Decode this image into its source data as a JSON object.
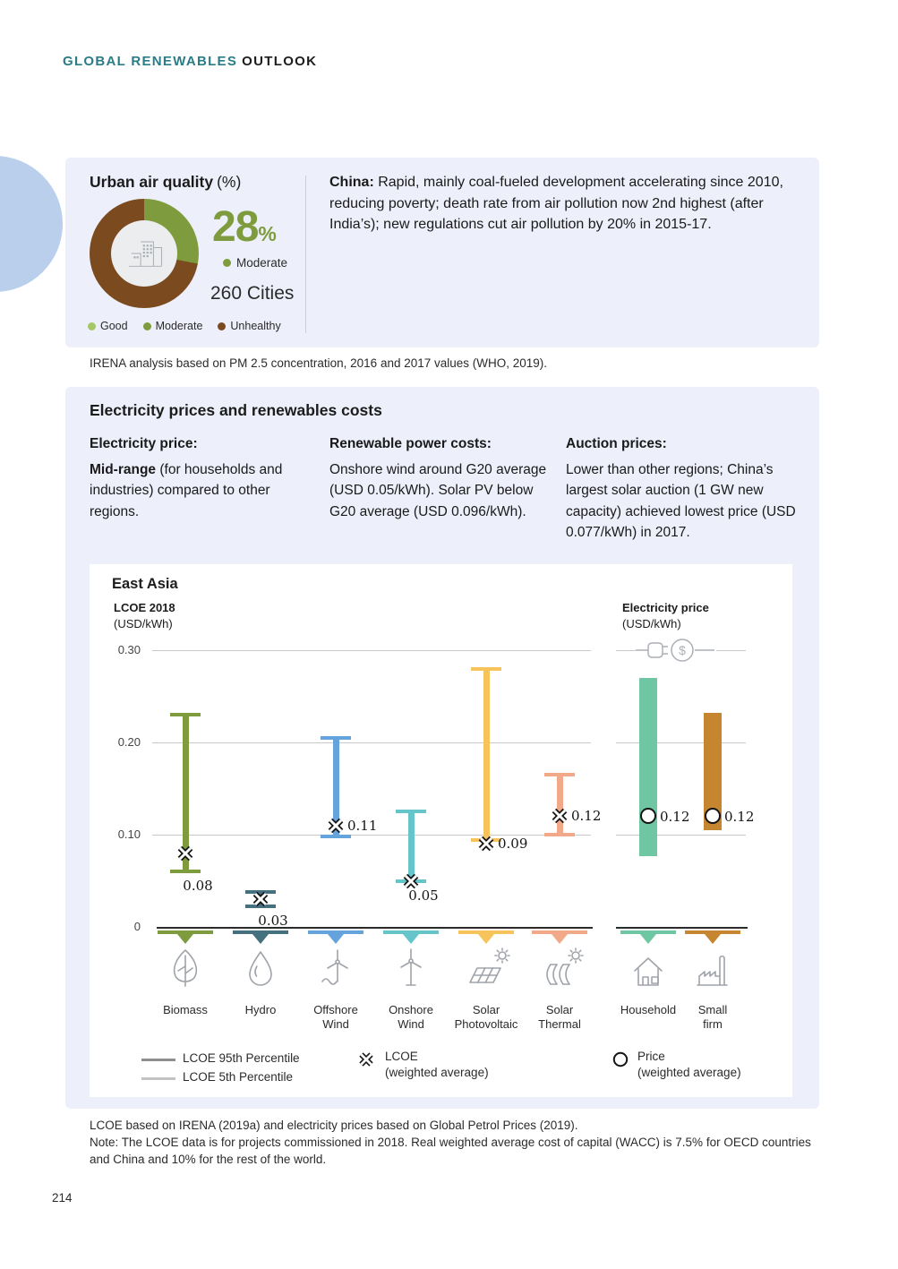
{
  "header": {
    "title_primary": "GLOBAL RENEWABLES",
    "title_secondary": "OUTLOOK"
  },
  "page": {
    "number": "214"
  },
  "air_quality_panel": {
    "title": "Urban air quality",
    "title_suffix": "(%)",
    "donut": {
      "moderate_pct": 28,
      "unhealthy_pct": 72,
      "colors": {
        "good": "#A5C765",
        "moderate": "#7E9C3E",
        "unhealthy": "#7B4A1F"
      }
    },
    "stat_value": "28",
    "stat_unit": "%",
    "stat_label": "Moderate",
    "cities": "260 Cities",
    "legend": [
      {
        "label": "Good",
        "color": "#A5C765"
      },
      {
        "label": "Moderate",
        "color": "#7E9C3E"
      },
      {
        "label": "Unhealthy",
        "color": "#7B4A1F"
      }
    ],
    "china_lead": "China:",
    "china_text": " Rapid, mainly coal-fueled development accelerating since 2010, reducing poverty; death rate from air pollution now 2nd highest (after India’s); new regulations cut air pollution by 20% in 2015-17."
  },
  "source_note": "IRENA analysis based on PM 2.5 concentration, 2016 and 2017 values (WHO, 2019).",
  "prices_panel": {
    "title": "Electricity prices and renewables costs",
    "columns": [
      {
        "heading": "Electricity price:",
        "lead": "Mid-range",
        "body": " (for households and industries) compared to other regions."
      },
      {
        "heading": "Renewable power costs:",
        "lead": "",
        "body": "Onshore wind around G20 average (USD 0.05/kWh). Solar PV below G20 average (USD 0.096/kWh)."
      },
      {
        "heading": "Auction prices:",
        "lead": "",
        "body": "Lower than other regions; China’s largest solar auction (1 GW new capacity) achieved lowest price (USD 0.077/kWh) in 2017."
      }
    ]
  },
  "chart_data": {
    "type": "range-bar",
    "title": "East Asia",
    "left_axis": {
      "label": "LCOE 2018",
      "unit": "(USD/kWh)"
    },
    "right_axis": {
      "label": "Electricity price",
      "unit": "(USD/kWh)"
    },
    "ylim": [
      0,
      0.3
    ],
    "grid": true,
    "yticks": [
      {
        "value": 0.3,
        "label": "0.30"
      },
      {
        "value": 0.2,
        "label": "0.20"
      },
      {
        "value": 0.1,
        "label": "0.10"
      },
      {
        "value": 0,
        "label": "0"
      }
    ],
    "lcoe_series": [
      {
        "name": "Biomass",
        "label_lines": [
          "Biomass"
        ],
        "icon": "leaf-icon",
        "color": "#7E9C3E",
        "p5": 0.06,
        "p95": 0.23,
        "weighted_avg": 0.08,
        "avg_label": "0.08",
        "label_pos": "below"
      },
      {
        "name": "Hydro",
        "label_lines": [
          "Hydro"
        ],
        "icon": "water-drop-icon",
        "color": "#45707F",
        "p5": 0.022,
        "p95": 0.038,
        "weighted_avg": 0.03,
        "avg_label": "0.03",
        "label_pos": "below"
      },
      {
        "name": "Offshore Wind",
        "label_lines": [
          "Offshore",
          "Wind"
        ],
        "icon": "offshore-wind-turbine-icon",
        "color": "#64A3DC",
        "p5": 0.098,
        "p95": 0.205,
        "weighted_avg": 0.11,
        "avg_label": "0.11",
        "label_pos": "right"
      },
      {
        "name": "Onshore Wind",
        "label_lines": [
          "Onshore",
          "Wind"
        ],
        "icon": "onshore-wind-turbine-icon",
        "color": "#66C5CB",
        "p5": 0.05,
        "p95": 0.125,
        "weighted_avg": 0.05,
        "avg_label": "0.05",
        "label_pos": "below"
      },
      {
        "name": "Solar Photovoltaic",
        "label_lines": [
          "Solar",
          "Photovoltaic"
        ],
        "icon": "solar-panel-icon",
        "color": "#F7C35B",
        "p5": 0.094,
        "p95": 0.28,
        "weighted_avg": 0.09,
        "avg_label": "0.09",
        "label_pos": "right"
      },
      {
        "name": "Solar Thermal",
        "label_lines": [
          "Solar",
          "Thermal"
        ],
        "icon": "solar-thermal-icon",
        "color": "#F2A98A",
        "p5": 0.1,
        "p95": 0.165,
        "weighted_avg": 0.12,
        "avg_label": "0.12",
        "label_pos": "right"
      }
    ],
    "price_series": [
      {
        "name": "Household",
        "label_lines": [
          "Household"
        ],
        "icon": "house-icon",
        "color": "#6FC6A2",
        "low": 0.077,
        "high": 0.27,
        "weighted_avg": 0.12,
        "avg_label": "0.12"
      },
      {
        "name": "Small firm",
        "label_lines": [
          "Small",
          "firm"
        ],
        "icon": "factory-icon",
        "color": "#C6862F",
        "low": 0.105,
        "high": 0.232,
        "weighted_avg": 0.12,
        "avg_label": "0.12"
      }
    ],
    "legend": {
      "p95_label": "LCOE 95th Percentile",
      "p5_label": "LCOE 5th Percentile",
      "lcoe_marker_label": "LCOE",
      "lcoe_marker_sublabel": "(weighted average)",
      "price_marker_label": "Price",
      "price_marker_sublabel": "(weighted average)"
    }
  },
  "footnote": {
    "line1": "LCOE based on IRENA (2019a) and electricity prices based on Global Petrol Prices (2019).",
    "line2": "Note: The LCOE data is for projects commissioned in 2018. Real weighted average cost of capital (WACC) is 7.5% for OECD countries and China and 10% for the rest of the world."
  }
}
